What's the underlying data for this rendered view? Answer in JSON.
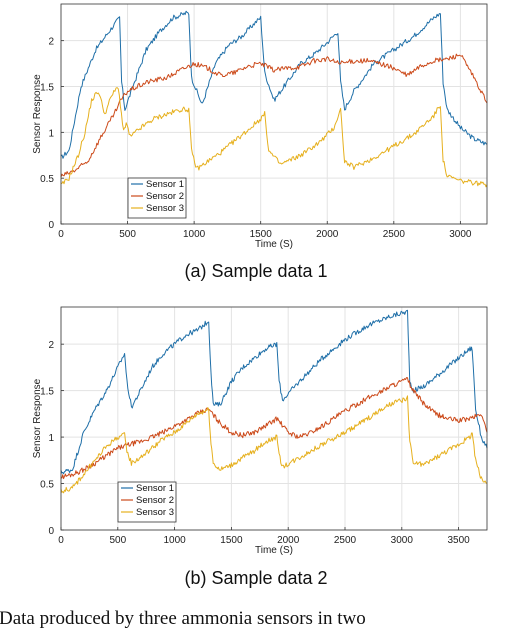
{
  "chart_data": [
    {
      "type": "line",
      "caption": "(a) Sample data 1",
      "xlabel": "Time (S)",
      "ylabel": "Sensor Response",
      "xlim": [
        0,
        3200
      ],
      "ylim": [
        0,
        2.4
      ],
      "xticks": [
        0,
        500,
        1000,
        1500,
        2000,
        2500,
        3000
      ],
      "yticks": [
        0,
        0.5,
        1,
        1.5,
        2
      ],
      "ytick_labels": [
        "0",
        "0.5",
        "1",
        "1.5",
        "2"
      ],
      "grid": true,
      "legend_position": "lower-left",
      "series": [
        {
          "name": "Sensor 1",
          "color": "#1f6fa8",
          "x": [
            0,
            60,
            150,
            260,
            360,
            440,
            455,
            480,
            540,
            640,
            740,
            840,
            940,
            960,
            980,
            1060,
            1160,
            1260,
            1360,
            1460,
            1500,
            1530,
            1600,
            1700,
            1800,
            1900,
            2000,
            2080,
            2100,
            2130,
            2200,
            2350,
            2500,
            2650,
            2800,
            2850,
            2870,
            2900,
            3000,
            3100,
            3200
          ],
          "y": [
            0.72,
            0.8,
            1.5,
            1.9,
            2.1,
            2.25,
            1.55,
            1.25,
            1.5,
            1.9,
            2.1,
            2.25,
            2.3,
            2.3,
            1.6,
            1.3,
            1.75,
            1.95,
            2.05,
            2.2,
            2.25,
            1.65,
            1.35,
            1.55,
            1.75,
            1.85,
            1.98,
            2.1,
            1.55,
            1.25,
            1.45,
            1.75,
            1.9,
            2.05,
            2.25,
            2.3,
            1.55,
            1.25,
            1.05,
            0.93,
            0.87
          ]
        },
        {
          "name": "Sensor 2",
          "color": "#cc4a1a",
          "x": [
            0,
            100,
            200,
            300,
            400,
            450,
            500,
            650,
            800,
            900,
            1000,
            1100,
            1200,
            1300,
            1400,
            1500,
            1600,
            1700,
            1800,
            1900,
            2000,
            2100,
            2200,
            2300,
            2400,
            2500,
            2600,
            2700,
            2800,
            2900,
            3000,
            3100,
            3200
          ],
          "y": [
            0.52,
            0.58,
            0.68,
            0.95,
            1.2,
            1.35,
            1.45,
            1.55,
            1.6,
            1.68,
            1.75,
            1.7,
            1.62,
            1.65,
            1.72,
            1.75,
            1.68,
            1.7,
            1.72,
            1.78,
            1.8,
            1.75,
            1.78,
            1.78,
            1.75,
            1.7,
            1.62,
            1.72,
            1.78,
            1.8,
            1.85,
            1.6,
            1.32
          ]
        },
        {
          "name": "Sensor 3",
          "color": "#e6b01e",
          "x": [
            0,
            60,
            130,
            180,
            230,
            280,
            330,
            380,
            430,
            470,
            490,
            520,
            600,
            700,
            800,
            900,
            960,
            980,
            1020,
            1100,
            1200,
            1300,
            1400,
            1500,
            1530,
            1560,
            1650,
            1800,
            1950,
            2050,
            2100,
            2130,
            2200,
            2350,
            2500,
            2650,
            2800,
            2850,
            2870,
            2900,
            3000,
            3100,
            3200
          ],
          "y": [
            0.42,
            0.5,
            0.75,
            1.0,
            1.35,
            1.45,
            1.2,
            1.4,
            1.5,
            1.0,
            1.1,
            0.95,
            1.05,
            1.15,
            1.2,
            1.25,
            1.25,
            0.8,
            0.6,
            0.68,
            0.78,
            0.9,
            1.02,
            1.15,
            1.2,
            0.8,
            0.65,
            0.75,
            0.9,
            1.05,
            1.25,
            0.68,
            0.62,
            0.72,
            0.85,
            0.98,
            1.18,
            1.3,
            0.7,
            0.52,
            0.47,
            0.45,
            0.43
          ]
        }
      ]
    },
    {
      "type": "line",
      "caption": "(b) Sample data 2",
      "xlabel": "Time (S)",
      "ylabel": "Sensor Response",
      "xlim": [
        0,
        3750
      ],
      "ylim": [
        0,
        2.4
      ],
      "xticks": [
        0,
        500,
        1000,
        1500,
        2000,
        2500,
        3000,
        3500
      ],
      "yticks": [
        0,
        0.5,
        1,
        1.5,
        2
      ],
      "ytick_labels": [
        "0",
        "0.5",
        "1",
        "1.5",
        "2"
      ],
      "grid": true,
      "legend_position": "lower-left",
      "series": [
        {
          "name": "Sensor 1",
          "color": "#1f6fa8",
          "x": [
            0,
            100,
            200,
            300,
            400,
            500,
            560,
            580,
            620,
            700,
            800,
            900,
            1000,
            1100,
            1200,
            1300,
            1320,
            1340,
            1400,
            1500,
            1600,
            1700,
            1800,
            1900,
            1920,
            1950,
            2100,
            2300,
            2500,
            2700,
            2900,
            3050,
            3070,
            3100,
            3200,
            3300,
            3400,
            3500,
            3600,
            3620,
            3650,
            3700,
            3750
          ],
          "y": [
            0.62,
            0.65,
            1.05,
            1.3,
            1.5,
            1.75,
            1.9,
            1.6,
            1.32,
            1.5,
            1.75,
            1.9,
            2.0,
            2.1,
            2.15,
            2.25,
            1.7,
            1.35,
            1.35,
            1.6,
            1.75,
            1.85,
            1.95,
            2.0,
            1.6,
            1.4,
            1.6,
            1.85,
            2.05,
            2.2,
            2.3,
            2.35,
            1.6,
            1.5,
            1.55,
            1.65,
            1.75,
            1.85,
            1.95,
            1.95,
            1.3,
            1.0,
            0.88
          ]
        },
        {
          "name": "Sensor 2",
          "color": "#cc4a1a",
          "x": [
            0,
            100,
            200,
            300,
            400,
            500,
            600,
            700,
            800,
            900,
            1000,
            1100,
            1200,
            1300,
            1400,
            1500,
            1600,
            1700,
            1800,
            1900,
            2000,
            2100,
            2200,
            2300,
            2400,
            2500,
            2600,
            2700,
            2800,
            2900,
            3000,
            3050,
            3100,
            3200,
            3300,
            3400,
            3500,
            3600,
            3700,
            3750
          ],
          "y": [
            0.57,
            0.6,
            0.65,
            0.72,
            0.8,
            0.88,
            0.92,
            0.95,
            1.0,
            1.05,
            1.12,
            1.18,
            1.25,
            1.3,
            1.15,
            1.05,
            1.02,
            1.05,
            1.12,
            1.2,
            1.05,
            1.0,
            1.05,
            1.12,
            1.2,
            1.28,
            1.35,
            1.42,
            1.48,
            1.55,
            1.6,
            1.62,
            1.5,
            1.35,
            1.25,
            1.2,
            1.18,
            1.2,
            1.25,
            1.05
          ]
        },
        {
          "name": "Sensor 3",
          "color": "#e6b01e",
          "x": [
            0,
            100,
            200,
            300,
            400,
            500,
            560,
            580,
            620,
            700,
            800,
            900,
            1000,
            1100,
            1200,
            1300,
            1320,
            1340,
            1400,
            1500,
            1600,
            1700,
            1800,
            1900,
            1920,
            1950,
            2100,
            2300,
            2500,
            2700,
            2900,
            3050,
            3070,
            3100,
            3200,
            3300,
            3400,
            3500,
            3600,
            3620,
            3650,
            3700,
            3750
          ],
          "y": [
            0.42,
            0.45,
            0.6,
            0.75,
            0.9,
            1.0,
            1.02,
            0.85,
            0.72,
            0.78,
            0.88,
            0.98,
            1.05,
            1.15,
            1.25,
            1.3,
            0.95,
            0.72,
            0.65,
            0.7,
            0.78,
            0.85,
            0.95,
            1.0,
            0.8,
            0.68,
            0.78,
            0.92,
            1.05,
            1.2,
            1.35,
            1.42,
            0.95,
            0.72,
            0.7,
            0.78,
            0.85,
            0.92,
            1.0,
            1.05,
            0.75,
            0.55,
            0.5
          ]
        }
      ]
    }
  ],
  "body_text": "Data produced by three ammonia sensors in two"
}
